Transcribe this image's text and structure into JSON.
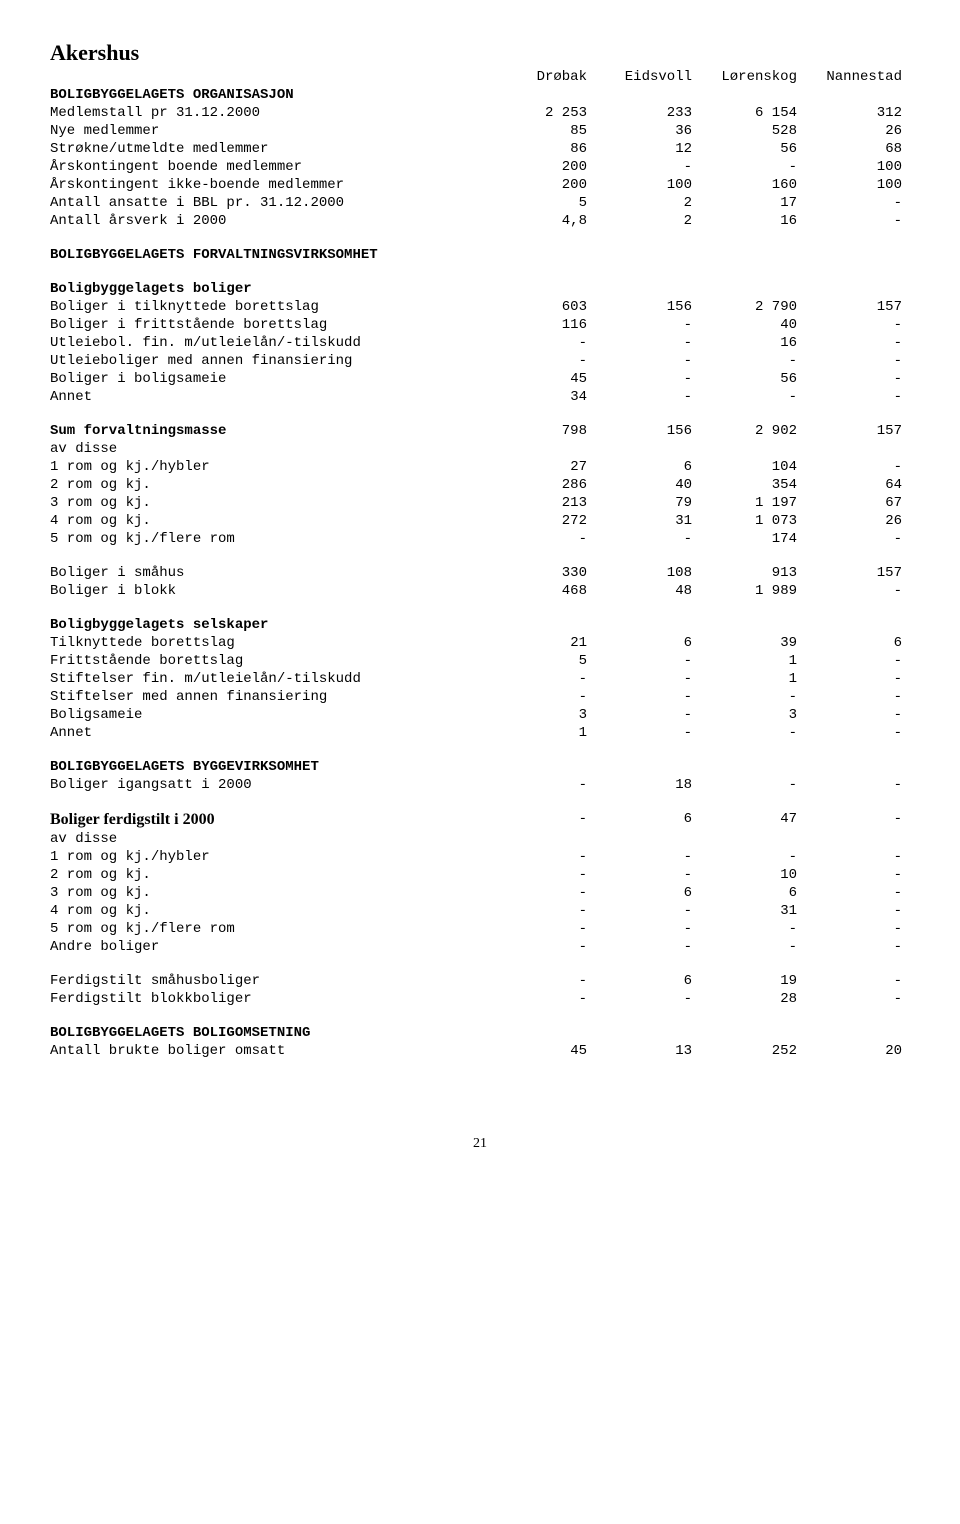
{
  "title": "Akershus",
  "page_number": "21",
  "columns": [
    "Drøbak",
    "Eidsvoll",
    "Lørenskog",
    "Nannestad"
  ],
  "sections": [
    {
      "heading": "BOLIGBYGGELAGETS ORGANISASJON",
      "rows": [
        {
          "label": "Medlemstall pr 31.12.2000",
          "vals": [
            "2 253",
            "233",
            "6 154",
            "312"
          ]
        },
        {
          "label": "Nye medlemmer",
          "vals": [
            "85",
            "36",
            "528",
            "26"
          ]
        },
        {
          "label": "Strøkne/utmeldte medlemmer",
          "vals": [
            "86",
            "12",
            "56",
            "68"
          ]
        },
        {
          "label": "Årskontingent boende medlemmer",
          "vals": [
            "200",
            "-",
            "-",
            "100"
          ]
        },
        {
          "label": "Årskontingent ikke-boende medlemmer",
          "vals": [
            "200",
            "100",
            "160",
            "100"
          ]
        },
        {
          "label": "Antall ansatte i BBL pr. 31.12.2000",
          "vals": [
            "5",
            "2",
            "17",
            "-"
          ]
        },
        {
          "label": "Antall årsverk i 2000",
          "vals": [
            "4,8",
            "2",
            "16",
            "-"
          ]
        }
      ]
    },
    {
      "heading": "BOLIGBYGGELAGETS FORVALTNINGSVIRKSOMHET",
      "subgroups": [
        {
          "sub": "Boligbyggelagets boliger",
          "rows": [
            {
              "label": "Boliger i tilknyttede borettslag",
              "vals": [
                "603",
                "156",
                "2 790",
                "157"
              ]
            },
            {
              "label": "Boliger i frittstående borettslag",
              "vals": [
                "116",
                "-",
                "40",
                "-"
              ]
            },
            {
              "label": "Utleiebol. fin. m/utleielån/-tilskudd",
              "vals": [
                "-",
                "-",
                "16",
                "-"
              ]
            },
            {
              "label": "Utleieboliger med annen finansiering",
              "vals": [
                "-",
                "-",
                "-",
                "-"
              ]
            },
            {
              "label": "Boliger i boligsameie",
              "vals": [
                "45",
                "-",
                "56",
                "-"
              ]
            },
            {
              "label": "Annet",
              "vals": [
                "34",
                "-",
                "-",
                "-"
              ]
            }
          ]
        },
        {
          "sub_bold_row": {
            "label": "Sum forvaltningsmasse",
            "vals": [
              "798",
              "156",
              "2 902",
              "157"
            ]
          },
          "rows": [
            {
              "label": "av disse",
              "vals": [
                "",
                "",
                "",
                ""
              ]
            },
            {
              "label": "1 rom og kj./hybler",
              "vals": [
                "27",
                "6",
                "104",
                "-"
              ]
            },
            {
              "label": "2 rom og kj.",
              "vals": [
                "286",
                "40",
                "354",
                "64"
              ]
            },
            {
              "label": "3 rom og kj.",
              "vals": [
                "213",
                "79",
                "1 197",
                "67"
              ]
            },
            {
              "label": "4 rom og kj.",
              "vals": [
                "272",
                "31",
                "1 073",
                "26"
              ]
            },
            {
              "label": "5 rom og kj./flere rom",
              "vals": [
                "-",
                "-",
                "174",
                "-"
              ]
            }
          ]
        },
        {
          "rows": [
            {
              "label": "Boliger i småhus",
              "vals": [
                "330",
                "108",
                "913",
                "157"
              ]
            },
            {
              "label": "Boliger i blokk",
              "vals": [
                "468",
                "48",
                "1 989",
                "-"
              ]
            }
          ]
        },
        {
          "sub": "Boligbyggelagets selskaper",
          "rows": [
            {
              "label": "Tilknyttede borettslag",
              "vals": [
                "21",
                "6",
                "39",
                "6"
              ]
            },
            {
              "label": "Frittstående borettslag",
              "vals": [
                "5",
                "-",
                "1",
                "-"
              ]
            },
            {
              "label": "Stiftelser fin. m/utleielån/-tilskudd",
              "vals": [
                "-",
                "-",
                "1",
                "-"
              ]
            },
            {
              "label": "Stiftelser med annen finansiering",
              "vals": [
                "-",
                "-",
                "-",
                "-"
              ]
            },
            {
              "label": "Boligsameie",
              "vals": [
                "3",
                "-",
                "3",
                "-"
              ]
            },
            {
              "label": "Annet",
              "vals": [
                "1",
                "-",
                "-",
                "-"
              ]
            }
          ]
        }
      ]
    },
    {
      "heading": "BOLIGBYGGELAGETS BYGGEVIRKSOMHET",
      "rows": [
        {
          "label": "Boliger igangsatt i 2000",
          "vals": [
            "-",
            "18",
            "-",
            "-"
          ]
        }
      ]
    },
    {
      "special_row": {
        "label": "Boliger ferdigstilt i 2000",
        "vals": [
          "-",
          "6",
          "47",
          "-"
        ],
        "serif": true
      },
      "rows": [
        {
          "label": "av disse",
          "vals": [
            "",
            "",
            "",
            ""
          ]
        },
        {
          "label": "1 rom og kj./hybler",
          "vals": [
            "-",
            "-",
            "-",
            "-"
          ]
        },
        {
          "label": "2 rom og kj.",
          "vals": [
            "-",
            "-",
            "10",
            "-"
          ]
        },
        {
          "label": "3 rom og kj.",
          "vals": [
            "-",
            "6",
            "6",
            "-"
          ]
        },
        {
          "label": "4 rom og kj.",
          "vals": [
            "-",
            "-",
            "31",
            "-"
          ]
        },
        {
          "label": "5 rom og kj./flere rom",
          "vals": [
            "-",
            "-",
            "-",
            "-"
          ]
        },
        {
          "label": "Andre boliger",
          "vals": [
            "-",
            "-",
            "-",
            "-"
          ]
        }
      ]
    },
    {
      "rows": [
        {
          "label": "Ferdigstilt småhusboliger",
          "vals": [
            "-",
            "6",
            "19",
            "-"
          ]
        },
        {
          "label": "Ferdigstilt blokkboliger",
          "vals": [
            "-",
            "-",
            "28",
            "-"
          ]
        }
      ]
    },
    {
      "heading": "BOLIGBYGGELAGETS BOLIGOMSETNING",
      "rows": [
        {
          "label": "Antall brukte boliger omsatt",
          "vals": [
            "45",
            "13",
            "252",
            "20"
          ]
        }
      ]
    }
  ]
}
